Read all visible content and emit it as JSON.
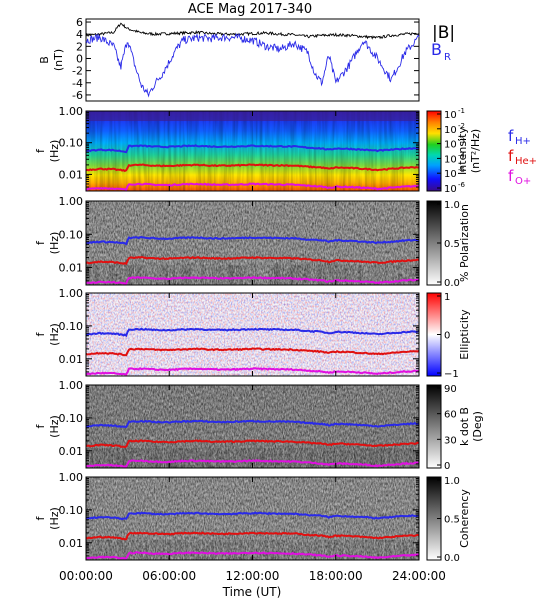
{
  "chart_data": [
    {
      "type": "line",
      "title": "ACE Mag 2017-340",
      "ylabel": "B\n(nT)",
      "ylim": [
        -7,
        6.5
      ],
      "yticks": [
        "6",
        "4",
        "2",
        "0",
        "-2",
        "-4",
        "-6"
      ],
      "series": [
        {
          "name": "|B|",
          "color": "#000000",
          "x_hours": [
            0,
            1,
            2,
            2.5,
            3,
            4,
            5,
            6,
            7,
            8,
            9,
            10,
            11,
            12,
            13,
            14,
            15,
            16,
            17,
            18,
            19,
            20,
            21,
            22,
            23,
            24
          ],
          "values": [
            3.8,
            4.0,
            4.3,
            5.8,
            4.9,
            4.2,
            4.0,
            4.1,
            4.2,
            4.3,
            4.1,
            4.0,
            4.0,
            4.1,
            4.2,
            4.0,
            3.9,
            3.6,
            3.8,
            3.9,
            3.8,
            3.6,
            3.4,
            3.8,
            4.0,
            4.2
          ]
        },
        {
          "name": "B",
          "subscript": "R",
          "color": "#2a2ae8",
          "x_hours": [
            0,
            1,
            2,
            2.5,
            3,
            3.5,
            4,
            4.5,
            5,
            5.5,
            6,
            6.5,
            7,
            8,
            9,
            10,
            11,
            12,
            13,
            14,
            15,
            16,
            16.5,
            17,
            17.5,
            18,
            19,
            20,
            21,
            22,
            23,
            24
          ],
          "values": [
            3.0,
            3.5,
            2.0,
            -1.5,
            3.2,
            -1.0,
            -4.5,
            -6.0,
            -4.0,
            -2.5,
            -0.5,
            1.5,
            3.0,
            3.4,
            3.3,
            3.5,
            3.4,
            3.0,
            2.0,
            1.5,
            2.5,
            1.0,
            -2.5,
            -4.0,
            0.5,
            -4.0,
            -1.0,
            3.0,
            0.0,
            -3.5,
            1.0,
            3.5
          ]
        }
      ]
    },
    {
      "type": "heatmap",
      "ylabel": "f\n(Hz)",
      "ylim_hz": [
        0.003,
        1.0
      ],
      "yticks": [
        "1.00",
        "0.10",
        "0.01"
      ],
      "colorbar": {
        "label": "Intensity\n(nT²/Hz)",
        "ticks": [
          "10",
          "10",
          "10",
          "10",
          "10",
          "10"
        ],
        "exponents": [
          "-1",
          "-2",
          "-3",
          "-4",
          "-5",
          "-6"
        ]
      },
      "overlay_labels": [
        {
          "text": "f",
          "sub": "H+",
          "color": "#2a2ae8"
        },
        {
          "text": "f",
          "sub": "He+",
          "color": "#e01010"
        },
        {
          "text": "f",
          "sub": "O+",
          "color": "#e010e0"
        }
      ]
    },
    {
      "type": "heatmap",
      "ylabel": "f\n(Hz)",
      "yticks": [
        "1.00",
        "0.10",
        "0.01"
      ],
      "colorbar": {
        "label": "% Polarization",
        "ticks": [
          "1.0",
          "0.5",
          "0.0"
        ]
      }
    },
    {
      "type": "heatmap",
      "ylabel": "f\n(Hz)",
      "yticks": [
        "1.00",
        "0.10",
        "0.01"
      ],
      "colorbar": {
        "label": "Ellipticity",
        "ticks": [
          "1",
          "0",
          "−1"
        ]
      }
    },
    {
      "type": "heatmap",
      "ylabel": "f\n(Hz)",
      "yticks": [
        "1.00",
        "0.10",
        "0.01"
      ],
      "colorbar": {
        "label": "k dot B\n(Deg)",
        "ticks": [
          "90",
          "60",
          "30",
          "0"
        ]
      }
    },
    {
      "type": "heatmap",
      "ylabel": "f\n(Hz)",
      "yticks": [
        "1.00",
        "0.10",
        "0.01"
      ],
      "colorbar": {
        "label": "Coherency",
        "ticks": [
          "1.0",
          "0.5",
          "0.0"
        ]
      }
    }
  ],
  "gyro_lines": {
    "x_hours": [
      0,
      1,
      2,
      2.9,
      3.1,
      4,
      5,
      6,
      7,
      8,
      9,
      10,
      11,
      12,
      13,
      14,
      15,
      16,
      17,
      17.5,
      18,
      19,
      20,
      21,
      22,
      23,
      24
    ],
    "H": [
      0.055,
      0.06,
      0.058,
      0.052,
      0.078,
      0.08,
      0.075,
      0.074,
      0.078,
      0.08,
      0.076,
      0.075,
      0.077,
      0.08,
      0.078,
      0.077,
      0.076,
      0.07,
      0.066,
      0.06,
      0.066,
      0.064,
      0.06,
      0.056,
      0.06,
      0.065,
      0.068
    ],
    "He": [
      0.0138,
      0.015,
      0.0145,
      0.013,
      0.0195,
      0.02,
      0.0188,
      0.0185,
      0.0195,
      0.02,
      0.019,
      0.0188,
      0.0193,
      0.02,
      0.0195,
      0.0193,
      0.019,
      0.0175,
      0.0165,
      0.015,
      0.0165,
      0.016,
      0.015,
      0.014,
      0.015,
      0.0163,
      0.017
    ],
    "O": [
      0.0034,
      0.0037,
      0.0036,
      0.0033,
      0.0049,
      0.005,
      0.0047,
      0.0046,
      0.0049,
      0.005,
      0.0048,
      0.0047,
      0.0048,
      0.005,
      0.0049,
      0.0048,
      0.0047,
      0.0044,
      0.0041,
      0.0038,
      0.0041,
      0.004,
      0.0038,
      0.0035,
      0.0038,
      0.0041,
      0.0043
    ],
    "colors": {
      "H": "#2a2ae8",
      "He": "#e01010",
      "O": "#e010e0"
    }
  },
  "x_axis": {
    "label": "Time (UT)",
    "ticks": [
      "00:00:00",
      "06:00:00",
      "12:00:00",
      "18:00:00",
      "24:00:00"
    ],
    "range_hours": [
      0,
      24
    ]
  }
}
